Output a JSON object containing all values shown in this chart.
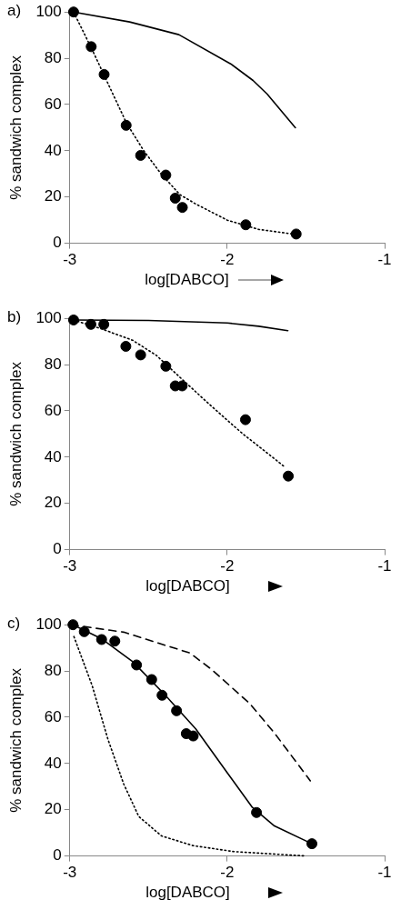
{
  "chart_data": [
    {
      "type": "scatter",
      "title": "a)",
      "xlabel": "log[DABCO]",
      "ylabel": "% sandwich complex",
      "xlim": [
        -3,
        -1
      ],
      "xticks": [
        -3,
        -2,
        -1
      ],
      "ylim": [
        0,
        100
      ],
      "yticks": [
        0,
        20,
        40,
        60,
        80,
        100
      ],
      "grid": false,
      "legend": false,
      "series": [
        {
          "type": "scatter",
          "color": "#000000",
          "marker": "circle",
          "x": [
            -2.976,
            -2.864,
            -2.782,
            -2.642,
            -2.55,
            -2.39,
            -2.33,
            -2.285,
            -1.882,
            -1.562
          ],
          "values": [
            100,
            85,
            73,
            51,
            38,
            29.5,
            19.5,
            15.5,
            8,
            4
          ]
        },
        {
          "type": "line",
          "color": "#000000",
          "line_style": "solid",
          "marker": "none",
          "x": [
            -2.976,
            -2.62,
            -2.307,
            -1.976,
            -1.836,
            -1.746,
            -1.567
          ],
          "values": [
            100,
            95.7,
            90.2,
            77.5,
            70.4,
            64.5,
            50
          ]
        },
        {
          "type": "line",
          "color": "#000000",
          "line_style": "dotted",
          "marker": "none",
          "x": [
            -2.976,
            -2.86,
            -2.75,
            -2.64,
            -2.53,
            -2.42,
            -2.3,
            -2.2,
            -2.0,
            -1.8,
            -1.56
          ],
          "values": [
            100,
            84,
            68,
            52,
            40,
            30,
            21,
            17,
            10,
            6,
            3.8
          ]
        }
      ]
    },
    {
      "type": "scatter",
      "title": "b)",
      "xlabel": "log[DABCO]",
      "ylabel": "% sandwich complex",
      "xlim": [
        -3,
        -1
      ],
      "xticks": [
        -3,
        -2,
        -1
      ],
      "ylim": [
        0,
        100
      ],
      "yticks": [
        0,
        20,
        40,
        60,
        80,
        100
      ],
      "grid": false,
      "legend": false,
      "series": [
        {
          "type": "scatter",
          "color": "#000000",
          "marker": "circle",
          "x": [
            -2.976,
            -2.866,
            -2.784,
            -2.644,
            -2.55,
            -2.39,
            -2.33,
            -2.286,
            -1.884,
            -1.612
          ],
          "values": [
            99.3,
            97.4,
            97.4,
            87.9,
            84.2,
            79.3,
            70.8,
            70.8,
            56.2,
            31.8
          ]
        },
        {
          "type": "line",
          "color": "#000000",
          "line_style": "solid",
          "marker": "none",
          "x": [
            -2.976,
            -2.5,
            -2.0,
            -1.8,
            -1.615
          ],
          "values": [
            99.3,
            99.1,
            98,
            96.6,
            94.7
          ]
        },
        {
          "type": "line",
          "color": "#000000",
          "line_style": "dotted",
          "marker": "none",
          "x": [
            -2.976,
            -2.8,
            -2.6,
            -2.45,
            -2.3,
            -2.1,
            -1.9,
            -1.75,
            -1.63
          ],
          "values": [
            99.3,
            95.5,
            90.5,
            84,
            74.5,
            62,
            50,
            42,
            35.5
          ]
        }
      ]
    },
    {
      "type": "scatter",
      "title": "c)",
      "xlabel": "log[DABCO]",
      "ylabel": "% sandwich complex",
      "xlim": [
        -3,
        -1
      ],
      "xticks": [
        -3,
        -2,
        -1
      ],
      "ylim": [
        0,
        100
      ],
      "yticks": [
        0,
        20,
        40,
        60,
        80,
        100
      ],
      "grid": false,
      "legend": false,
      "series": [
        {
          "type": "scatter",
          "color": "#000000",
          "marker": "circle",
          "x": [
            -2.98,
            -2.908,
            -2.798,
            -2.714,
            -2.576,
            -2.48,
            -2.414,
            -2.322,
            -2.26,
            -2.216,
            -1.814,
            -1.462
          ],
          "values": [
            100,
            97,
            93.6,
            92.9,
            82.6,
            76.3,
            69.5,
            62.8,
            52.9,
            51.9,
            18.8,
            5.3
          ]
        },
        {
          "type": "line",
          "color": "#000000",
          "line_style": "solid",
          "marker": "none",
          "x": [
            -2.98,
            -2.8,
            -2.6,
            -2.4,
            -2.2,
            -2.0,
            -1.84,
            -1.7,
            -1.462
          ],
          "values": [
            100,
            94,
            84,
            70,
            55,
            36,
            21,
            13,
            5.3
          ]
        },
        {
          "type": "line",
          "color": "#000000",
          "line_style": "dashed",
          "marker": "none",
          "x": [
            -2.992,
            -2.658,
            -2.238,
            -2.1,
            -1.858,
            -1.698,
            -1.472
          ],
          "values": [
            100,
            96.8,
            87.8,
            80.7,
            66,
            53,
            32.5
          ]
        },
        {
          "type": "line",
          "color": "#000000",
          "line_style": "dotted",
          "marker": "none",
          "x": [
            -2.974,
            -2.858,
            -2.758,
            -2.658,
            -2.562,
            -2.418,
            -2.218,
            -1.958,
            -1.498
          ],
          "values": [
            94.9,
            73.7,
            50.5,
            31.2,
            17.1,
            8.7,
            4.5,
            1.9,
            0
          ]
        }
      ]
    }
  ]
}
